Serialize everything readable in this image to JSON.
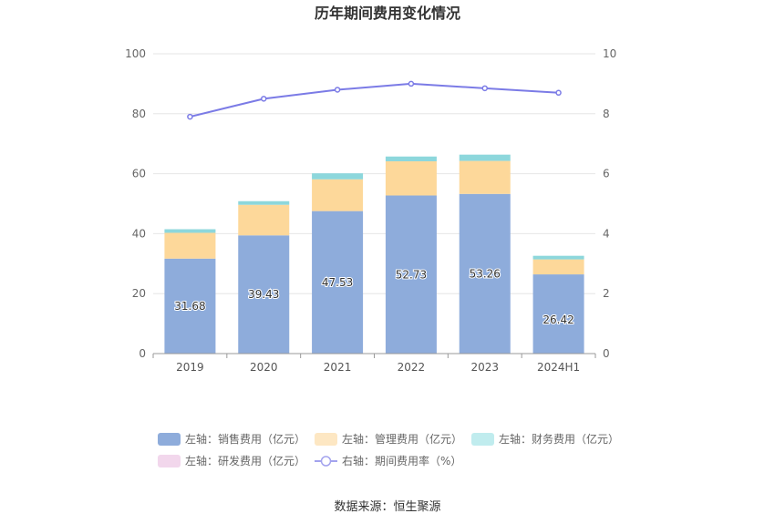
{
  "chart_data": {
    "type": "bar",
    "title": "历年期间费用变化情况",
    "categories": [
      "2019",
      "2020",
      "2021",
      "2022",
      "2023",
      "2024H1"
    ],
    "y_left": {
      "range": [
        0,
        100
      ],
      "ticks": [
        "0",
        "20",
        "40",
        "60",
        "80",
        "100"
      ]
    },
    "y_right": {
      "range": [
        0,
        10
      ],
      "ticks": [
        "0",
        "2",
        "4",
        "6",
        "8",
        "10"
      ]
    },
    "stacked": true,
    "series": [
      {
        "name": "左轴：销售费用（亿元）",
        "axis": "left",
        "type": "bar",
        "color": "#8eacdb",
        "values": [
          31.68,
          39.43,
          47.53,
          52.73,
          53.26,
          26.42
        ],
        "labels": [
          "31.68",
          "39.43",
          "47.53",
          "52.73",
          "53.26",
          "26.42"
        ]
      },
      {
        "name": "左轴：管理费用（亿元）",
        "axis": "left",
        "type": "bar",
        "color": "#fdd89a",
        "values": [
          8.6,
          10.2,
          10.6,
          11.4,
          11.0,
          5.0
        ]
      },
      {
        "name": "左轴：财务费用（亿元）",
        "axis": "left",
        "type": "bar",
        "color": "#8dd7dc",
        "values": [
          1.2,
          1.2,
          2.0,
          1.6,
          2.1,
          1.2
        ]
      },
      {
        "name": "左轴：研发费用（亿元）",
        "axis": "left",
        "type": "bar",
        "color": "#f2d7ec",
        "values": [
          0,
          0,
          0,
          0,
          0,
          0
        ]
      },
      {
        "name": "右轴：期间费用率（%）",
        "axis": "right",
        "type": "line",
        "color": "#7b7be6",
        "values": [
          7.9,
          8.5,
          8.8,
          9.0,
          8.85,
          8.7
        ]
      }
    ],
    "grid": true,
    "legend_position": "bottom"
  },
  "source_text": "数据来源：恒生聚源"
}
